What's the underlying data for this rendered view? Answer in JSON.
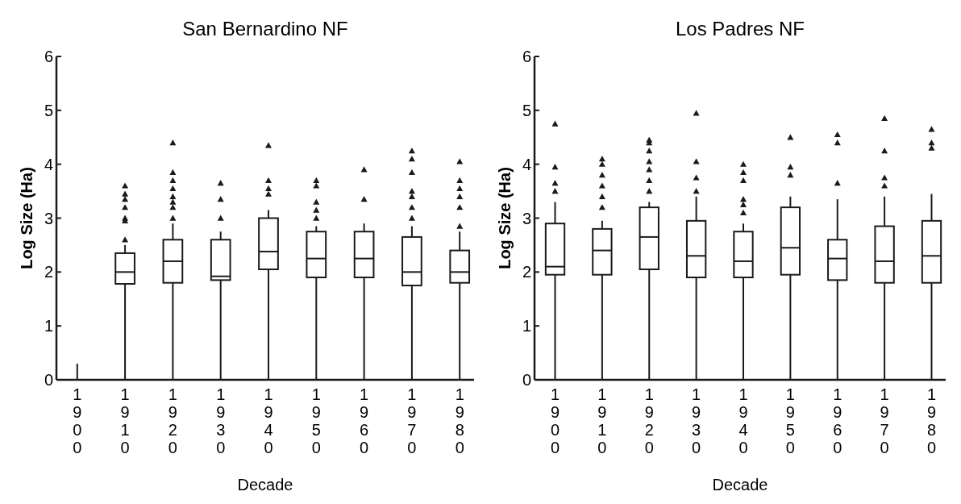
{
  "chart_data": [
    {
      "type": "box",
      "title": "San Bernardino NF",
      "xlabel": "Decade",
      "ylabel": "Log Size (Ha)",
      "categories": [
        "1900",
        "1910",
        "1920",
        "1930",
        "1940",
        "1950",
        "1960",
        "1970",
        "1980"
      ],
      "ylim": [
        0,
        6
      ],
      "yticks": [
        0,
        1,
        2,
        3,
        4,
        5,
        6
      ],
      "marker": "triangle",
      "grid": false,
      "color": "#1a1a1a",
      "boxes": [
        {
          "low": 0,
          "q1": 0,
          "median": 0,
          "q3": 0,
          "high": 0.3
        },
        {
          "low": 0,
          "q1": 1.78,
          "median": 2.0,
          "q3": 2.35,
          "high": 2.5,
          "outliers": [
            2.6,
            2.95,
            3.0,
            3.2,
            3.35,
            3.45,
            3.6
          ]
        },
        {
          "low": 0,
          "q1": 1.8,
          "median": 2.2,
          "q3": 2.6,
          "high": 2.9,
          "outliers": [
            3.0,
            3.2,
            3.3,
            3.4,
            3.55,
            3.7,
            3.85,
            4.4
          ]
        },
        {
          "low": 0,
          "q1": 1.85,
          "median": 1.92,
          "q3": 2.6,
          "high": 2.75,
          "outliers": [
            3.0,
            3.35,
            3.65
          ]
        },
        {
          "low": 0,
          "q1": 2.05,
          "median": 2.38,
          "q3": 3.0,
          "high": 3.15,
          "outliers": [
            3.45,
            3.55,
            3.7,
            4.35
          ]
        },
        {
          "low": 0,
          "q1": 1.9,
          "median": 2.25,
          "q3": 2.75,
          "high": 2.85,
          "outliers": [
            3.0,
            3.15,
            3.3,
            3.6,
            3.7
          ]
        },
        {
          "low": 0,
          "q1": 1.9,
          "median": 2.25,
          "q3": 2.75,
          "high": 2.9,
          "outliers": [
            3.35,
            3.9
          ]
        },
        {
          "low": 0,
          "q1": 1.75,
          "median": 2.0,
          "q3": 2.65,
          "high": 2.85,
          "outliers": [
            3.0,
            3.2,
            3.4,
            3.5,
            3.85,
            4.1,
            4.25
          ]
        },
        {
          "low": 0,
          "q1": 1.8,
          "median": 2.0,
          "q3": 2.4,
          "high": 2.75,
          "outliers": [
            2.85,
            3.2,
            3.4,
            3.55,
            3.7,
            4.05
          ]
        }
      ]
    },
    {
      "type": "box",
      "title": "Los Padres NF",
      "xlabel": "Decade",
      "ylabel": "Log Size (Ha)",
      "categories": [
        "1900",
        "1910",
        "1920",
        "1930",
        "1940",
        "1950",
        "1960",
        "1970",
        "1980"
      ],
      "ylim": [
        0,
        6
      ],
      "yticks": [
        0,
        1,
        2,
        3,
        4,
        5,
        6
      ],
      "marker": "triangle",
      "grid": false,
      "color": "#1a1a1a",
      "boxes": [
        {
          "low": 0,
          "q1": 1.95,
          "median": 2.1,
          "q3": 2.9,
          "high": 3.3,
          "outliers": [
            3.5,
            3.65,
            3.95,
            4.75
          ]
        },
        {
          "low": 0,
          "q1": 1.95,
          "median": 2.4,
          "q3": 2.8,
          "high": 2.95,
          "outliers": [
            3.2,
            3.4,
            3.6,
            3.8,
            4.0,
            4.1
          ]
        },
        {
          "low": 0,
          "q1": 2.05,
          "median": 2.65,
          "q3": 3.2,
          "high": 3.3,
          "outliers": [
            3.5,
            3.7,
            3.9,
            4.05,
            4.25,
            4.4,
            4.45
          ]
        },
        {
          "low": 0,
          "q1": 1.9,
          "median": 2.3,
          "q3": 2.95,
          "high": 3.4,
          "outliers": [
            3.5,
            3.75,
            4.05,
            4.95
          ]
        },
        {
          "low": 0,
          "q1": 1.9,
          "median": 2.2,
          "q3": 2.75,
          "high": 2.9,
          "outliers": [
            3.1,
            3.25,
            3.35,
            3.7,
            3.85,
            4.0
          ]
        },
        {
          "low": 0,
          "q1": 1.95,
          "median": 2.45,
          "q3": 3.2,
          "high": 3.4,
          "outliers": [
            3.8,
            3.95,
            4.5
          ]
        },
        {
          "low": 0,
          "q1": 1.85,
          "median": 2.25,
          "q3": 2.6,
          "high": 3.35,
          "outliers": [
            3.65,
            4.4,
            4.55
          ]
        },
        {
          "low": 0,
          "q1": 1.8,
          "median": 2.2,
          "q3": 2.85,
          "high": 3.4,
          "outliers": [
            3.6,
            3.75,
            4.25,
            4.85
          ]
        },
        {
          "low": 0,
          "q1": 1.8,
          "median": 2.3,
          "q3": 2.95,
          "high": 3.45,
          "outliers": [
            4.3,
            4.4,
            4.65
          ]
        }
      ]
    }
  ]
}
